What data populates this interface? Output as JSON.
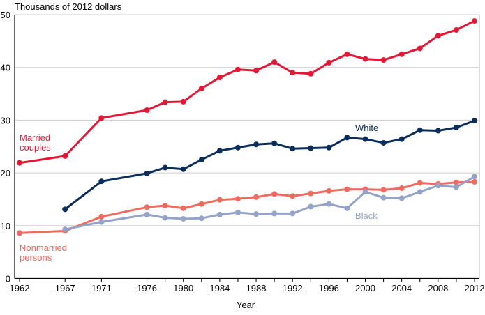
{
  "chart_data": {
    "type": "line",
    "title": "",
    "ylabel": "Thousands of 2012 dollars",
    "xlabel": "Year",
    "ylim": [
      0,
      50
    ],
    "xlim": [
      1962,
      2012
    ],
    "yticks": [
      0,
      10,
      20,
      30,
      40,
      50
    ],
    "xtick_labels": [
      1962,
      1967,
      1971,
      1976,
      1980,
      1984,
      1988,
      1992,
      1996,
      2000,
      2004,
      2008,
      2012
    ],
    "grid": true,
    "series": [
      {
        "name": "Married couples",
        "label_lines": [
          "Married",
          "couples"
        ],
        "color": "#e31837",
        "x": [
          1962,
          1967,
          1971,
          1976,
          1978,
          1980,
          1982,
          1984,
          1986,
          1988,
          1990,
          1992,
          1994,
          1996,
          1998,
          2000,
          2002,
          2004,
          2006,
          2008,
          2010,
          2012
        ],
        "values": [
          21.9,
          23.2,
          30.4,
          31.9,
          33.4,
          33.5,
          36.0,
          38.1,
          39.6,
          39.4,
          41.0,
          39.0,
          38.8,
          40.9,
          42.5,
          41.6,
          41.4,
          42.5,
          43.6,
          46.0,
          47.1,
          48.8
        ]
      },
      {
        "name": "White",
        "label_lines": [
          "White"
        ],
        "color": "#0b2d5b",
        "x": [
          1967,
          1971,
          1976,
          1978,
          1980,
          1982,
          1984,
          1986,
          1988,
          1990,
          1992,
          1994,
          1996,
          1998,
          2000,
          2002,
          2004,
          2006,
          2008,
          2010,
          2012
        ],
        "values": [
          13.1,
          18.4,
          19.9,
          21.0,
          20.7,
          22.5,
          24.2,
          24.8,
          25.4,
          25.6,
          24.6,
          24.7,
          24.8,
          26.7,
          26.4,
          25.7,
          26.4,
          28.1,
          28.0,
          28.6,
          29.9
        ]
      },
      {
        "name": "Nonmarried persons",
        "label_lines": [
          "Nonmarried",
          "persons"
        ],
        "color": "#ef6b5f",
        "x": [
          1962,
          1967,
          1971,
          1976,
          1978,
          1980,
          1982,
          1984,
          1986,
          1988,
          1990,
          1992,
          1994,
          1996,
          1998,
          2000,
          2002,
          2004,
          2006,
          2008,
          2010,
          2012
        ],
        "values": [
          8.6,
          9.0,
          11.7,
          13.5,
          13.8,
          13.3,
          14.1,
          14.9,
          15.1,
          15.4,
          16.0,
          15.6,
          16.1,
          16.6,
          16.9,
          16.9,
          16.8,
          17.1,
          18.1,
          17.9,
          18.2,
          18.3
        ]
      },
      {
        "name": "Black",
        "label_lines": [
          "Black"
        ],
        "color": "#94a3c8",
        "x": [
          1967,
          1971,
          1976,
          1978,
          1980,
          1982,
          1984,
          1986,
          1988,
          1990,
          1992,
          1994,
          1996,
          1998,
          2000,
          2002,
          2004,
          2006,
          2008,
          2010,
          2012
        ],
        "values": [
          9.3,
          10.7,
          12.1,
          11.5,
          11.3,
          11.4,
          12.1,
          12.5,
          12.2,
          12.3,
          12.3,
          13.6,
          14.1,
          13.3,
          16.4,
          15.3,
          15.2,
          16.4,
          17.6,
          17.3,
          19.3
        ]
      }
    ]
  }
}
